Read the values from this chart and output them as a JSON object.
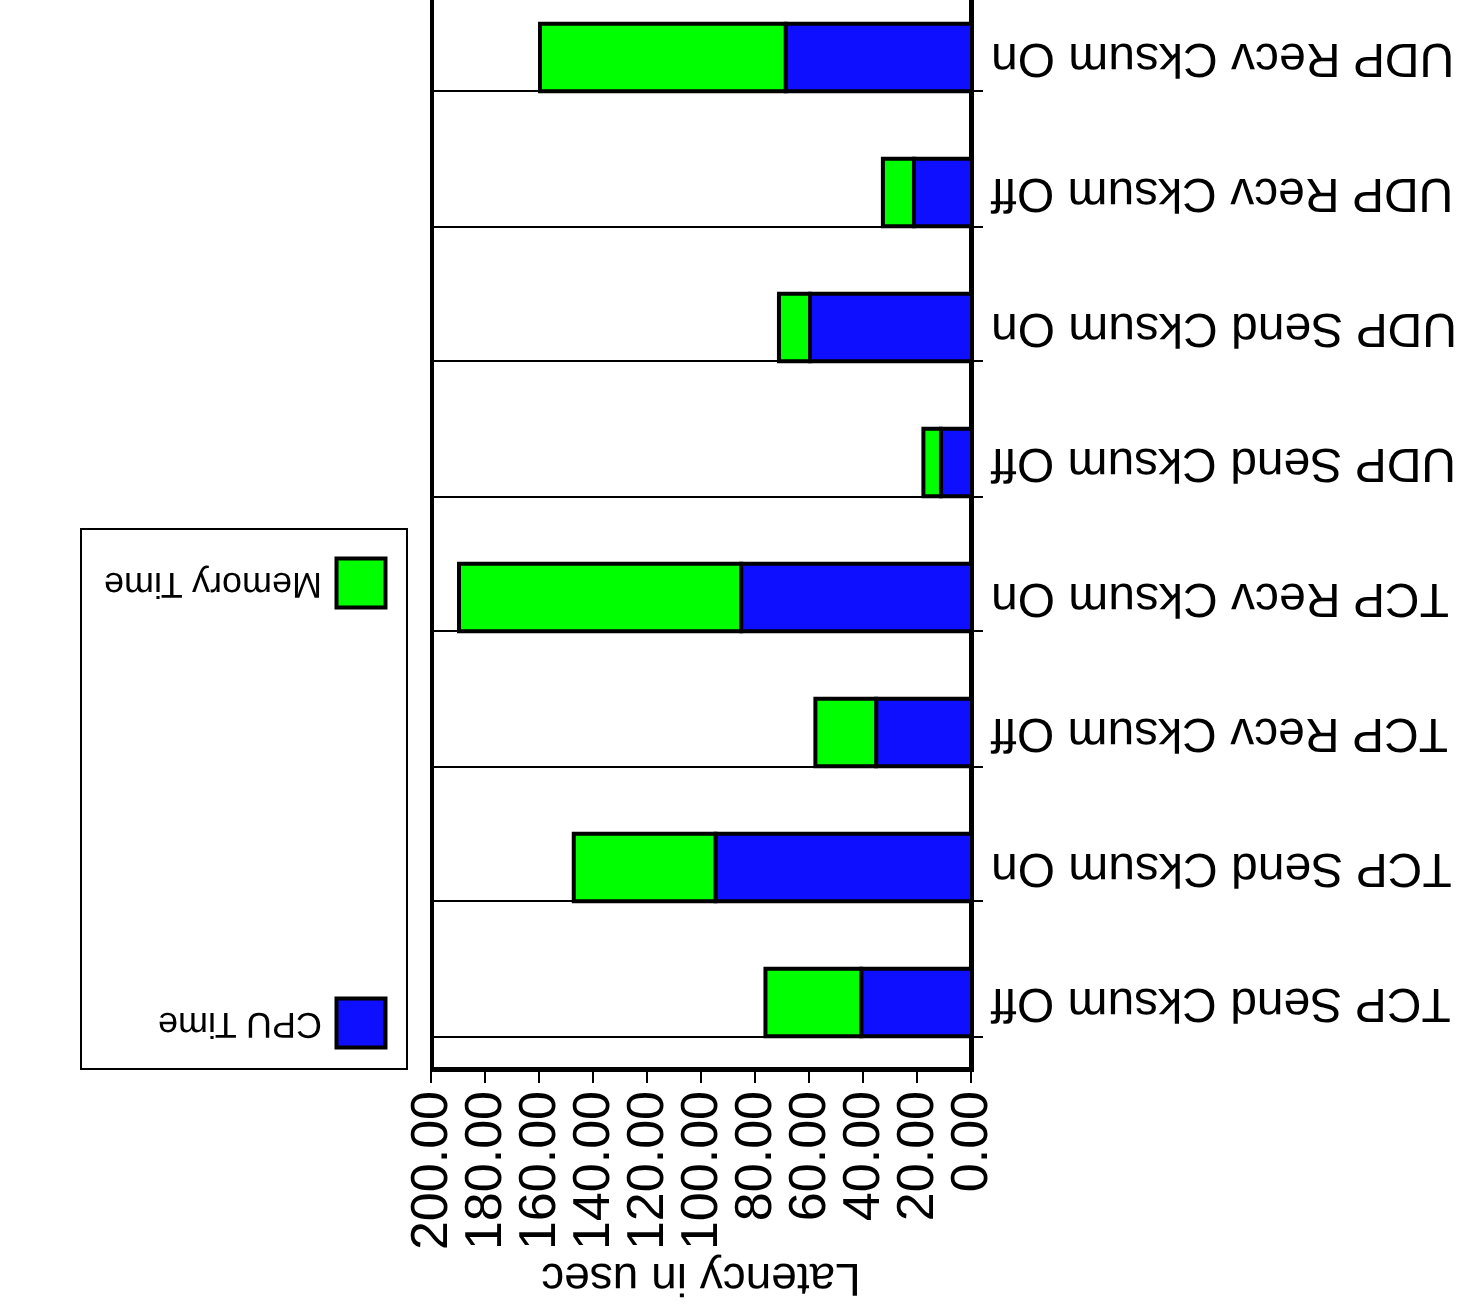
{
  "chart_data": {
    "type": "bar",
    "orientation": "horizontal",
    "stacked": true,
    "xlabel": "Latency in usec",
    "categories": [
      "UDP Recv Cksum On",
      "UDP Recv Cksum Off",
      "UDP Send Cksum On",
      "UDP Send Cksum Off",
      "TCP Recv Cksum On",
      "TCP Recv Cksum Off",
      "TCP Send Cksum On",
      "TCP Send Cksum Off"
    ],
    "series": [
      {
        "name": "CPU Time",
        "color": "#0f0fff",
        "values": [
          69,
          21.5,
          60,
          11.5,
          85.5,
          35.5,
          95,
          41
        ]
      },
      {
        "name": "Memory Time",
        "color": "#00ff00",
        "values": [
          91,
          11.5,
          11.5,
          6.5,
          104.5,
          22.5,
          52.5,
          35.5
        ]
      }
    ],
    "xlim": [
      200,
      0
    ],
    "xticks": [
      {
        "value": 0,
        "label": "0.00"
      },
      {
        "value": 20,
        "label": "20.00"
      },
      {
        "value": 40,
        "label": "40.00"
      },
      {
        "value": 60,
        "label": "60.00"
      },
      {
        "value": 80,
        "label": "80.00"
      },
      {
        "value": 100,
        "label": "100.00"
      },
      {
        "value": 120,
        "label": "120.00"
      },
      {
        "value": 140,
        "label": "140.00"
      },
      {
        "value": 160,
        "label": "160.00"
      },
      {
        "value": 180,
        "label": "180.00"
      },
      {
        "value": 200,
        "label": "200.00"
      }
    ],
    "grid": "y",
    "legend": "left"
  }
}
